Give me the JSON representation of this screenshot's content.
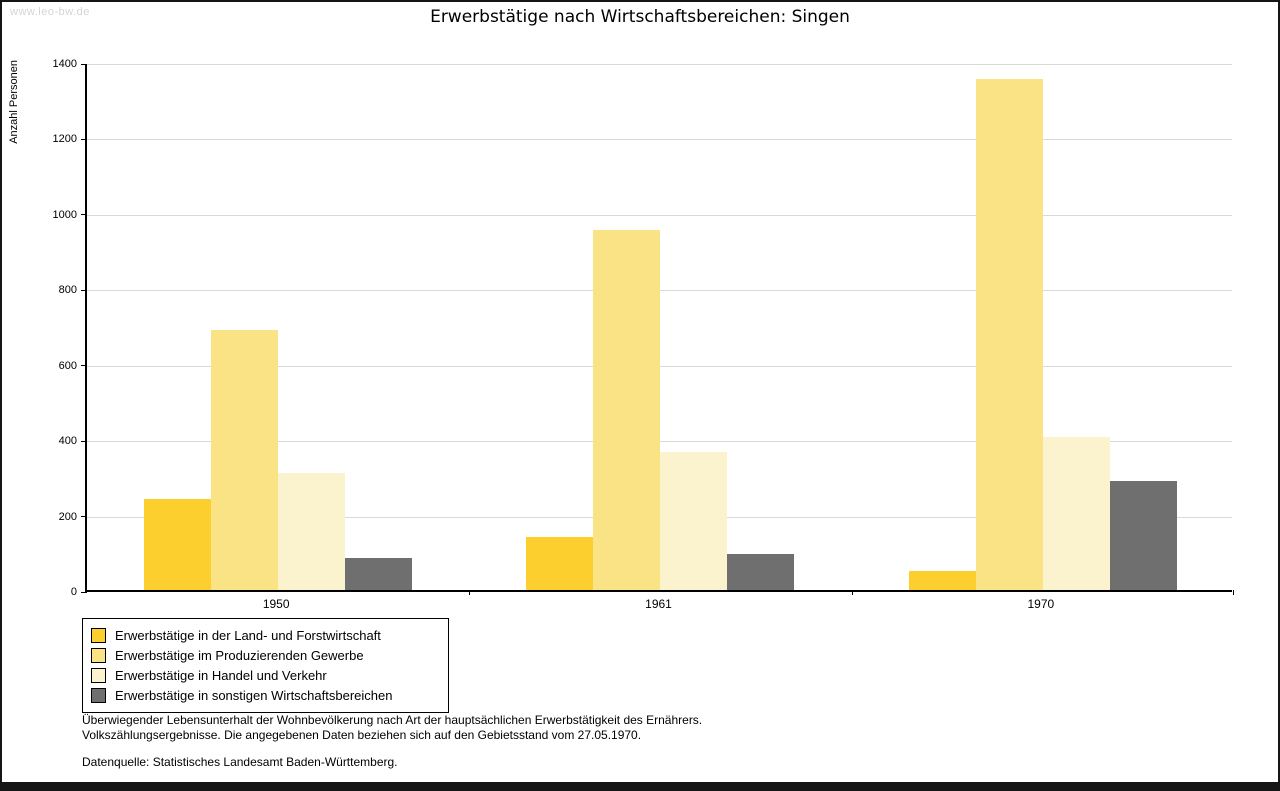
{
  "watermark": "www.leo-bw.de",
  "title": "Erwerbstätige nach Wirtschaftsbereichen: Singen",
  "chart_data": {
    "type": "bar",
    "title": "Erwerbstätige nach Wirtschaftsbereichen: Singen",
    "xlabel": "",
    "ylabel": "Anzahl Personen",
    "ylim": [
      0,
      1400
    ],
    "ytick_step": 200,
    "grid": true,
    "legend_position": "bottom-left",
    "categories": [
      "1950",
      "1961",
      "1970"
    ],
    "series": [
      {
        "name": "Erwerbstätige in der Land- und Forstwirtschaft",
        "color": "#FCCF2F",
        "values": [
          240,
          140,
          50
        ]
      },
      {
        "name": "Erwerbstätige im Produzierenden Gewerbe",
        "color": "#FAE385",
        "values": [
          690,
          955,
          1355
        ]
      },
      {
        "name": "Erwerbstätige in Handel und Verkehr",
        "color": "#FBF2CE",
        "values": [
          310,
          365,
          405
        ]
      },
      {
        "name": "Erwerbstätige in sonstigen Wirtschaftsbereichen",
        "color": "#6F6F6F",
        "values": [
          85,
          95,
          290
        ]
      }
    ]
  },
  "footnotes": {
    "line1": "Überwiegender Lebensunterhalt der Wohnbevölkerung nach Art der hauptsächlichen Erwerbstätigkeit des Ernährers.",
    "line2": "Volkszählungsergebnisse. Die angegebenen Daten beziehen sich auf den Gebietsstand vom 27.05.1970.",
    "source": "Datenquelle: Statistisches Landesamt Baden-Württemberg."
  }
}
